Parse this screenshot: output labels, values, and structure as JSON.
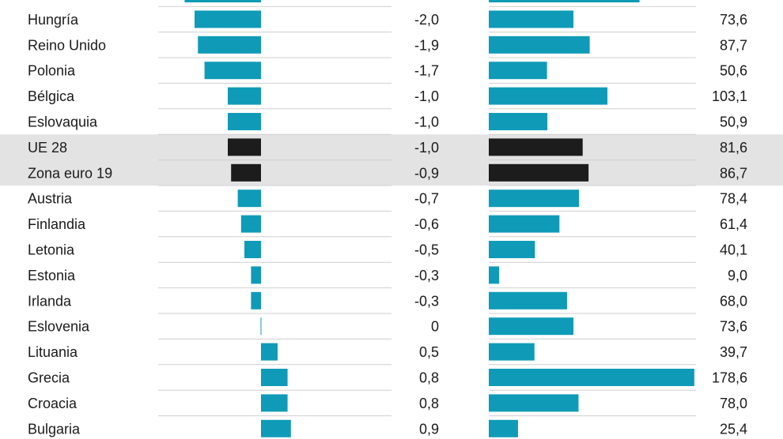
{
  "chart_data": [
    {
      "type": "bar",
      "orientation": "horizontal",
      "categories": [
        "",
        "Hungría",
        "Reino Unido",
        "Polonia",
        "Bélgica",
        "Eslovaquia",
        "UE 28",
        "Zona euro 19",
        "Austria",
        "Finlandia",
        "Letonia",
        "Estonia",
        "Irlanda",
        "Eslovenia",
        "Lituania",
        "Grecia",
        "Croacia",
        "Bulgaria"
      ],
      "values": [
        -2.3,
        -2.0,
        -1.9,
        -1.7,
        -1.0,
        -1.0,
        -1.0,
        -0.9,
        -0.7,
        -0.6,
        -0.5,
        -0.3,
        -0.3,
        0.0,
        0.5,
        0.8,
        0.8,
        0.9
      ],
      "value_labels": [
        "",
        "-2,0",
        "-1,9",
        "-1,7",
        "-1,0",
        "-1,0",
        "-1,0",
        "-0,9",
        "-0,7",
        "-0,6",
        "-0,5",
        "-0,3",
        "-0,3",
        "0",
        "0,5",
        "0,8",
        "0,8",
        "0,9"
      ],
      "highlighted": [
        "UE 28",
        "Zona euro 19"
      ]
    },
    {
      "type": "bar",
      "orientation": "horizontal",
      "categories": [
        "",
        "Hungría",
        "Reino Unido",
        "Polonia",
        "Bélgica",
        "Eslovaquia",
        "UE 28",
        "Zona euro 19",
        "Austria",
        "Finlandia",
        "Letonia",
        "Estonia",
        "Irlanda",
        "Eslovenia",
        "Lituania",
        "Grecia",
        "Croacia",
        "Bulgaria"
      ],
      "values": [
        131.0,
        73.6,
        87.7,
        50.6,
        103.1,
        50.9,
        81.6,
        86.7,
        78.4,
        61.4,
        40.1,
        9.0,
        68.0,
        73.6,
        39.7,
        178.6,
        78.0,
        25.4
      ],
      "value_labels": [
        "",
        "73,6",
        "87,7",
        "50,6",
        "103,1",
        "50,9",
        "81,6",
        "86,7",
        "78,4",
        "61,4",
        "40,1",
        "9,0",
        "68,0",
        "73,6",
        "39,7",
        "178,6",
        "78,0",
        "25,4"
      ],
      "highlighted": [
        "UE 28",
        "Zona euro 19"
      ]
    }
  ],
  "colors": {
    "bar": "#0f9bb7",
    "highlight_bar": "#1c1c1c",
    "highlight_row": "#e3e3e3",
    "separator": "#cfcfcf",
    "text": "#1a1a1a"
  }
}
